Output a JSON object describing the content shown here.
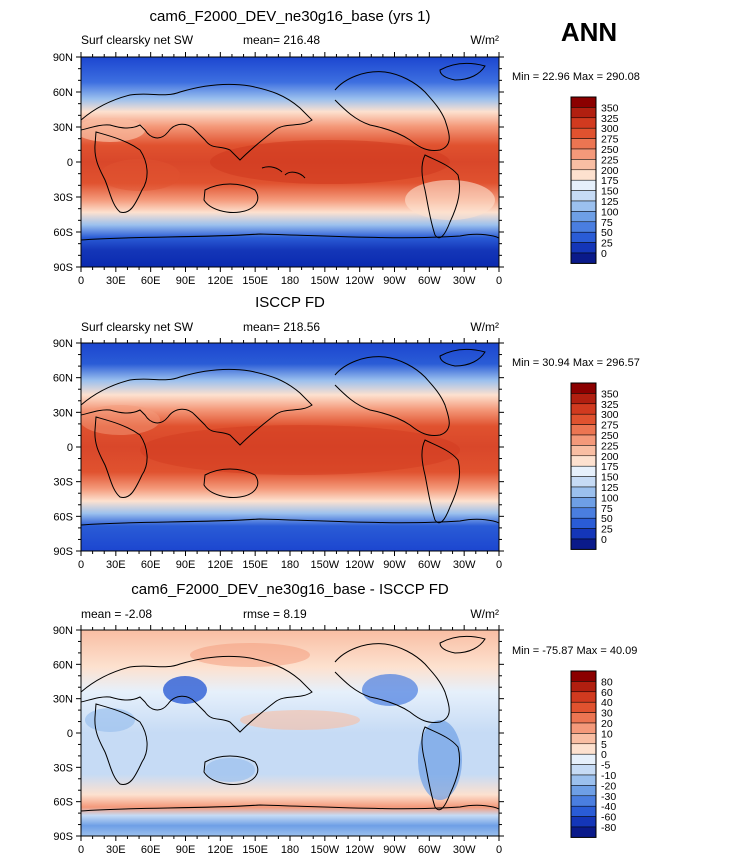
{
  "season": "ANN",
  "unit_label": "W/m²",
  "x_ticks": [
    "0",
    "30E",
    "60E",
    "90E",
    "120E",
    "150E",
    "180",
    "150W",
    "120W",
    "90W",
    "60W",
    "30W",
    "0"
  ],
  "y_ticks": [
    "90N",
    "60N",
    "30N",
    "0",
    "30S",
    "60S",
    "90S"
  ],
  "chart_data": [
    {
      "type": "heatmap",
      "title": "cam6_F2000_DEV_ne30g16_base (yrs 1)",
      "left_label": "Surf clearsky net SW",
      "mean_text": "mean= 216.48",
      "minmax_text": "Min =   22.96 Max =  290.08",
      "colorbar_levels": [
        "350",
        "325",
        "300",
        "275",
        "250",
        "225",
        "200",
        "175",
        "150",
        "125",
        "100",
        "75",
        "50",
        "25",
        "0"
      ],
      "colorbar_colors": [
        "#8b0000",
        "#b11f10",
        "#d13a1f",
        "#e0522f",
        "#ec7552",
        "#f4997a",
        "#f9bea3",
        "#fde1cf",
        "#e6f0fb",
        "#c6dbf5",
        "#9bc0ee",
        "#6e9fe6",
        "#4a7ee0",
        "#2a5cd6",
        "#1436b8",
        "#0a1a8a"
      ],
      "lon_range": [
        0,
        360
      ],
      "lat_range": [
        -90,
        90
      ]
    },
    {
      "type": "heatmap",
      "title": "ISCCP FD",
      "left_label": "Surf clearsky net SW",
      "mean_text": "mean= 218.56",
      "minmax_text": "Min =   30.94 Max =  296.57",
      "colorbar_levels": [
        "350",
        "325",
        "300",
        "275",
        "250",
        "225",
        "200",
        "175",
        "150",
        "125",
        "100",
        "75",
        "50",
        "25",
        "0"
      ],
      "colorbar_colors": [
        "#8b0000",
        "#b11f10",
        "#d13a1f",
        "#e0522f",
        "#ec7552",
        "#f4997a",
        "#f9bea3",
        "#fde1cf",
        "#e6f0fb",
        "#c6dbf5",
        "#9bc0ee",
        "#6e9fe6",
        "#4a7ee0",
        "#2a5cd6",
        "#1436b8",
        "#0a1a8a"
      ],
      "lon_range": [
        0,
        360
      ],
      "lat_range": [
        -90,
        90
      ]
    },
    {
      "type": "heatmap",
      "title": "cam6_F2000_DEV_ne30g16_base - ISCCP FD",
      "left_label": "mean =   -2.08",
      "mean_text": "rmse =    8.19",
      "minmax_text": "Min = -75.87 Max =  40.09",
      "colorbar_levels": [
        "80",
        "60",
        "40",
        "30",
        "20",
        "10",
        "5",
        "0",
        "-5",
        "-10",
        "-20",
        "-30",
        "-40",
        "-60",
        "-80"
      ],
      "colorbar_colors": [
        "#8b0000",
        "#b11f10",
        "#d13a1f",
        "#e0522f",
        "#ec7552",
        "#f4997a",
        "#f9bea3",
        "#fde1cf",
        "#e6f0fb",
        "#c6dbf5",
        "#9bc0ee",
        "#6e9fe6",
        "#4a7ee0",
        "#2a5cd6",
        "#1436b8",
        "#0a1a8a"
      ],
      "lon_range": [
        0,
        360
      ],
      "lat_range": [
        -90,
        90
      ]
    }
  ]
}
